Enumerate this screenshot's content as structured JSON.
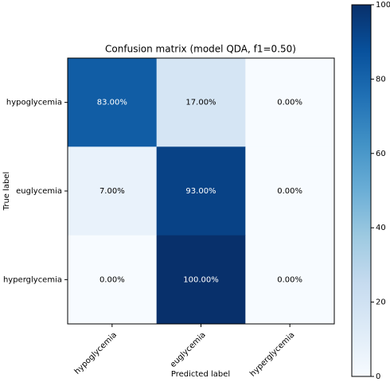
{
  "chart_data": {
    "type": "heatmap",
    "title": "Confusion matrix (model QDA, f1=0.50)",
    "xlabel": "Predicted label",
    "ylabel": "True label",
    "x_categories": [
      "hypoglycemia",
      "euglycemia",
      "hyperglycemia"
    ],
    "y_categories": [
      "hypoglycemia",
      "euglycemia",
      "hyperglycemia"
    ],
    "values": [
      [
        83,
        17,
        0
      ],
      [
        7,
        93,
        0
      ],
      [
        0,
        100,
        0
      ]
    ],
    "value_labels": [
      [
        "83.00%",
        "17.00%",
        "0.00%"
      ],
      [
        "7.00%",
        "93.00%",
        "0.00%"
      ],
      [
        "0.00%",
        "100.00%",
        "0.00%"
      ]
    ],
    "colormap": "Blues",
    "clim": [
      0,
      100
    ],
    "cticks": [
      0,
      20,
      40,
      60,
      80,
      100
    ]
  }
}
